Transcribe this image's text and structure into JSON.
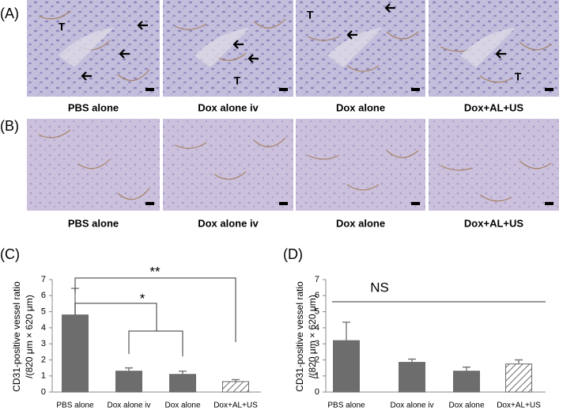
{
  "panels": [
    {
      "label": "(A)",
      "images": [
        {
          "caption": "PBS alone",
          "annotations": [
            "T"
          ]
        },
        {
          "caption": "Dox alone iv",
          "annotations": [
            "T"
          ]
        },
        {
          "caption": "Dox alone",
          "annotations": [
            "T"
          ]
        },
        {
          "caption": "Dox+AL+US",
          "annotations": [
            "T"
          ]
        }
      ]
    },
    {
      "label": "(B)",
      "images": [
        {
          "caption": "PBS alone"
        },
        {
          "caption": "Dox alone iv"
        },
        {
          "caption": "Dox alone"
        },
        {
          "caption": "Dox+AL+US"
        }
      ]
    }
  ],
  "chart_data": [
    {
      "type": "bar",
      "panel_label": "(C)",
      "ylabel": [
        "CD31-positive vessel ratio",
        "/(820 μm × 620 μm)"
      ],
      "categories": [
        "PBS alone",
        "Dox alone iv",
        "Dox alone",
        "Dox+AL+US"
      ],
      "series": [
        {
          "color": "#6d6d6d",
          "values": [
            4.8,
            1.3,
            1.1,
            0.65
          ],
          "errors": [
            1.65,
            0.2,
            0.2,
            0.12
          ],
          "hatched": [
            false,
            false,
            false,
            true
          ]
        }
      ],
      "ylim": [
        0,
        7
      ],
      "yticks": [
        0,
        1,
        2,
        3,
        4,
        5,
        6,
        7
      ],
      "annotations": [
        "*",
        "**"
      ]
    },
    {
      "type": "bar",
      "panel_label": "(D)",
      "ylabel": [
        "CD31-positive vessel ratio",
        "/(820 μm × 620 μm)"
      ],
      "categories": [
        "PBS alone",
        "Dox alone iv",
        "Dox alone",
        "Dox+AL+US"
      ],
      "series": [
        {
          "color": "#6d6d6d",
          "values": [
            3.2,
            1.85,
            1.3,
            1.75
          ],
          "errors": [
            1.15,
            0.2,
            0.25,
            0.25
          ],
          "hatched": [
            false,
            false,
            false,
            true
          ]
        }
      ],
      "ylim": [
        0,
        7
      ],
      "yticks": [
        0,
        1,
        2,
        3,
        4,
        5,
        6,
        7
      ],
      "annotations": [
        "NS"
      ]
    }
  ]
}
